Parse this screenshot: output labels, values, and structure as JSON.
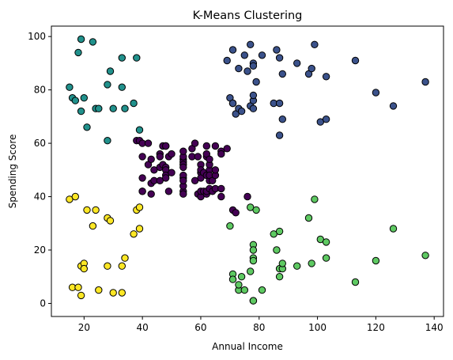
{
  "chart_data": {
    "type": "scatter",
    "title": "K-Means Clustering",
    "xlabel": "Annual Income",
    "ylabel": "Spending Score",
    "xlim": [
      8.8,
      143.2
    ],
    "ylim": [
      -4.9,
      103.9
    ],
    "xticks": [
      20,
      40,
      60,
      80,
      100,
      120,
      140
    ],
    "yticks": [
      0,
      20,
      40,
      60,
      80,
      100
    ],
    "grid": false,
    "legend": "none",
    "series": [
      {
        "color": "#440154",
        "points": [
          [
            38,
            61
          ],
          [
            39,
            61
          ],
          [
            40,
            60
          ],
          [
            40,
            55
          ],
          [
            40,
            47
          ],
          [
            40,
            42
          ],
          [
            40,
            42
          ],
          [
            42,
            52
          ],
          [
            42,
            60
          ],
          [
            43,
            54
          ],
          [
            43,
            45
          ],
          [
            43,
            41
          ],
          [
            44,
            50
          ],
          [
            44,
            46
          ],
          [
            46,
            51
          ],
          [
            46,
            46
          ],
          [
            46,
            56
          ],
          [
            46,
            55
          ],
          [
            47,
            52
          ],
          [
            47,
            59
          ],
          [
            48,
            51
          ],
          [
            48,
            59
          ],
          [
            48,
            50
          ],
          [
            48,
            48
          ],
          [
            48,
            59
          ],
          [
            48,
            47
          ],
          [
            49,
            55
          ],
          [
            49,
            42
          ],
          [
            50,
            49
          ],
          [
            50,
            56
          ],
          [
            54,
            47
          ],
          [
            54,
            54
          ],
          [
            54,
            53
          ],
          [
            54,
            48
          ],
          [
            54,
            52
          ],
          [
            54,
            42
          ],
          [
            54,
            51
          ],
          [
            54,
            55
          ],
          [
            54,
            41
          ],
          [
            54,
            44
          ],
          [
            54,
            57
          ],
          [
            54,
            46
          ],
          [
            57,
            58
          ],
          [
            57,
            55
          ],
          [
            58,
            60
          ],
          [
            58,
            46
          ],
          [
            59,
            55
          ],
          [
            59,
            41
          ],
          [
            60,
            49
          ],
          [
            60,
            40
          ],
          [
            60,
            42
          ],
          [
            60,
            52
          ],
          [
            60,
            47
          ],
          [
            60,
            50
          ],
          [
            61,
            42
          ],
          [
            61,
            49
          ],
          [
            62,
            41
          ],
          [
            62,
            48
          ],
          [
            62,
            59
          ],
          [
            62,
            55
          ],
          [
            62,
            56
          ],
          [
            62,
            42
          ],
          [
            63,
            50
          ],
          [
            63,
            46
          ],
          [
            63,
            43
          ],
          [
            63,
            48
          ],
          [
            63,
            52
          ],
          [
            63,
            54
          ],
          [
            64,
            42
          ],
          [
            64,
            46
          ],
          [
            65,
            48
          ],
          [
            65,
            50
          ],
          [
            65,
            43
          ],
          [
            65,
            59
          ],
          [
            67,
            43
          ],
          [
            67,
            57
          ],
          [
            67,
            56
          ],
          [
            67,
            40
          ],
          [
            69,
            58
          ],
          [
            71,
            35
          ],
          [
            72,
            34
          ],
          [
            76,
            40
          ]
        ]
      },
      {
        "color": "#3b528b",
        "points": [
          [
            69,
            91
          ],
          [
            70,
            77
          ],
          [
            71,
            95
          ],
          [
            71,
            75
          ],
          [
            71,
            75
          ],
          [
            72,
            71
          ],
          [
            73,
            88
          ],
          [
            73,
            73
          ],
          [
            74,
            72
          ],
          [
            75,
            93
          ],
          [
            76,
            87
          ],
          [
            77,
            97
          ],
          [
            77,
            74
          ],
          [
            78,
            90
          ],
          [
            78,
            76
          ],
          [
            78,
            89
          ],
          [
            78,
            78
          ],
          [
            78,
            73
          ],
          [
            79,
            83
          ],
          [
            81,
            93
          ],
          [
            85,
            75
          ],
          [
            86,
            95
          ],
          [
            87,
            63
          ],
          [
            87,
            75
          ],
          [
            87,
            92
          ],
          [
            88,
            86
          ],
          [
            88,
            69
          ],
          [
            93,
            90
          ],
          [
            97,
            86
          ],
          [
            98,
            88
          ],
          [
            99,
            97
          ],
          [
            101,
            68
          ],
          [
            103,
            85
          ],
          [
            103,
            69
          ],
          [
            113,
            91
          ],
          [
            120,
            79
          ],
          [
            126,
            74
          ],
          [
            137,
            83
          ]
        ]
      },
      {
        "color": "#21918c",
        "points": [
          [
            15,
            81
          ],
          [
            16,
            77
          ],
          [
            17,
            76
          ],
          [
            18,
            94
          ],
          [
            19,
            72
          ],
          [
            19,
            99
          ],
          [
            20,
            77
          ],
          [
            21,
            66
          ],
          [
            23,
            98
          ],
          [
            24,
            73
          ],
          [
            25,
            73
          ],
          [
            28,
            82
          ],
          [
            28,
            61
          ],
          [
            29,
            87
          ],
          [
            30,
            73
          ],
          [
            33,
            92
          ],
          [
            33,
            81
          ],
          [
            34,
            73
          ],
          [
            37,
            75
          ],
          [
            38,
            92
          ],
          [
            39,
            65
          ]
        ]
      },
      {
        "color": "#5ec962",
        "points": [
          [
            70,
            29
          ],
          [
            71,
            11
          ],
          [
            71,
            9
          ],
          [
            73,
            5
          ],
          [
            73,
            7
          ],
          [
            74,
            10
          ],
          [
            75,
            5
          ],
          [
            77,
            12
          ],
          [
            77,
            36
          ],
          [
            78,
            22
          ],
          [
            78,
            17
          ],
          [
            78,
            20
          ],
          [
            78,
            16
          ],
          [
            78,
            1
          ],
          [
            78,
            1
          ],
          [
            79,
            35
          ],
          [
            81,
            5
          ],
          [
            85,
            26
          ],
          [
            86,
            20
          ],
          [
            87,
            27
          ],
          [
            87,
            13
          ],
          [
            87,
            10
          ],
          [
            88,
            13
          ],
          [
            88,
            15
          ],
          [
            93,
            14
          ],
          [
            97,
            32
          ],
          [
            98,
            15
          ],
          [
            99,
            39
          ],
          [
            101,
            24
          ],
          [
            103,
            17
          ],
          [
            103,
            23
          ],
          [
            113,
            8
          ],
          [
            120,
            16
          ],
          [
            126,
            28
          ],
          [
            137,
            18
          ]
        ]
      },
      {
        "color": "#fde725",
        "points": [
          [
            15,
            39
          ],
          [
            16,
            6
          ],
          [
            17,
            40
          ],
          [
            18,
            6
          ],
          [
            19,
            3
          ],
          [
            19,
            14
          ],
          [
            20,
            15
          ],
          [
            20,
            13
          ],
          [
            21,
            35
          ],
          [
            23,
            29
          ],
          [
            24,
            35
          ],
          [
            25,
            5
          ],
          [
            28,
            14
          ],
          [
            28,
            32
          ],
          [
            29,
            31
          ],
          [
            30,
            4
          ],
          [
            33,
            4
          ],
          [
            33,
            14
          ],
          [
            34,
            17
          ],
          [
            37,
            26
          ],
          [
            38,
            35
          ],
          [
            39,
            36
          ],
          [
            39,
            28
          ]
        ]
      }
    ]
  }
}
